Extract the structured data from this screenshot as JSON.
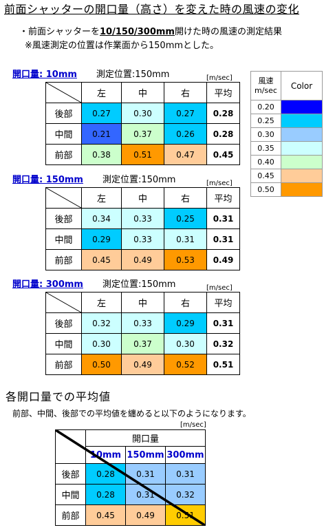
{
  "title": "前面シャッターの開口量（高さ）を変えた時の風速の変化",
  "notes": {
    "line1_pre": "・前面シャッターを",
    "line1_bold": "10/150/300mm",
    "line1_post": "開けた時の風速の測定結果",
    "line2": "※風速測定の位置は作業面から150mmとした。"
  },
  "unit": "[m/sec]",
  "columns": [
    "左",
    "中",
    "右",
    "平均"
  ],
  "rows": [
    "後部",
    "中間",
    "前部"
  ],
  "sections": [
    {
      "label": "開口量: 10mm",
      "position": "測定位置:150mm",
      "values": [
        [
          "0.27",
          "0.30",
          "0.27",
          "0.28"
        ],
        [
          "0.21",
          "0.37",
          "0.26",
          "0.28"
        ],
        [
          "0.38",
          "0.51",
          "0.47",
          "0.45"
        ]
      ],
      "colors": [
        [
          "#00ccff",
          "#ccffff",
          "#00ccff"
        ],
        [
          "#3366ff",
          "#ccffcc",
          "#00ccff"
        ],
        [
          "#ccffcc",
          "#ff9900",
          "#ffcc99"
        ]
      ]
    },
    {
      "label": "開口量: 150mm",
      "position": "測定位置:150mm",
      "values": [
        [
          "0.34",
          "0.33",
          "0.25",
          "0.31"
        ],
        [
          "0.29",
          "0.33",
          "0.31",
          "0.31"
        ],
        [
          "0.45",
          "0.49",
          "0.53",
          "0.49"
        ]
      ],
      "colors": [
        [
          "#ccffff",
          "#ccffff",
          "#00ccff"
        ],
        [
          "#00ccff",
          "#ccffff",
          "#ccffff"
        ],
        [
          "#ffcc99",
          "#ffcc99",
          "#ff9900"
        ]
      ]
    },
    {
      "label": "開口量: 300mm",
      "position": "測定位置:150mm",
      "values": [
        [
          "0.32",
          "0.33",
          "0.29",
          "0.31"
        ],
        [
          "0.30",
          "0.37",
          "0.30",
          "0.32"
        ],
        [
          "0.50",
          "0.49",
          "0.52",
          "0.51"
        ]
      ],
      "colors": [
        [
          "#ccffff",
          "#ccffff",
          "#00ccff"
        ],
        [
          "#ccffff",
          "#ccffcc",
          "#ccffff"
        ],
        [
          "#ff9900",
          "#ffcc99",
          "#ff9900"
        ]
      ]
    }
  ],
  "legend": {
    "header_value": "風速\nm/sec",
    "header_color": "Color",
    "items": [
      {
        "value": "0.20",
        "color": "#0000ff"
      },
      {
        "value": "0.25",
        "color": "#00ccff"
      },
      {
        "value": "0.30",
        "color": "#99ccff"
      },
      {
        "value": "0.35",
        "color": "#ccffff"
      },
      {
        "value": "0.40",
        "color": "#ccffcc"
      },
      {
        "value": "0.45",
        "color": "#ffcc99"
      },
      {
        "value": "0.50",
        "color": "#ff9900"
      }
    ]
  },
  "summary": {
    "title": "各開口量での平均値",
    "note": "前部、中間、後部での平均値を纏めると以下のようになります。",
    "unit": "[m/sec]",
    "group_label": "開口量",
    "columns": [
      "10mm",
      "150mm",
      "300mm"
    ],
    "rows": [
      "後部",
      "中間",
      "前部"
    ],
    "values": [
      [
        "0.28",
        "0.31",
        "0.31"
      ],
      [
        "0.28",
        "0.31",
        "0.32"
      ],
      [
        "0.45",
        "0.49",
        "0.51"
      ]
    ],
    "colors": [
      [
        "#00ccff",
        "#99ccff",
        "#99ccff"
      ],
      [
        "#00ccff",
        "#99ccff",
        "#99ccff"
      ],
      [
        "#ffcc99",
        "#ffcc99",
        "#ffcc00"
      ]
    ]
  }
}
